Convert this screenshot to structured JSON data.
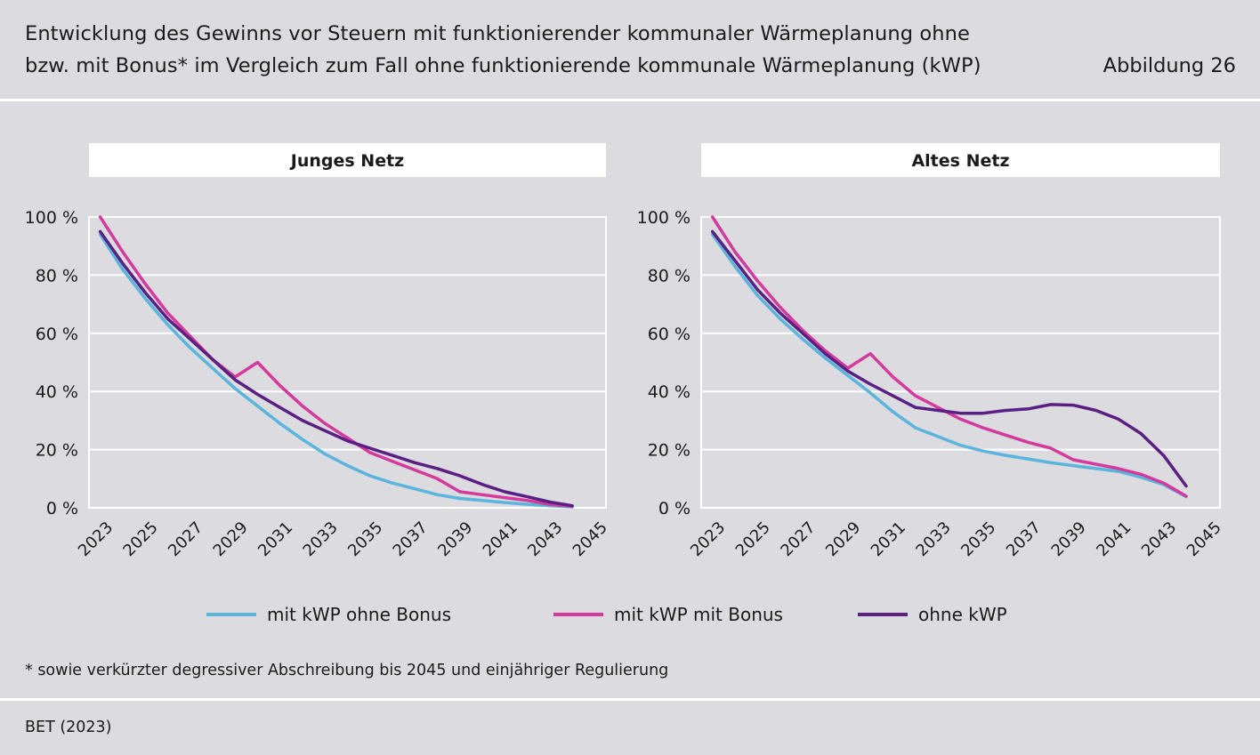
{
  "header": {
    "title_line1": "Entwicklung des Gewinns vor Steuern mit funktionierender kommunaler Wärmeplanung ohne",
    "title_line2": "bzw. mit Bonus* im Vergleich zum Fall ohne funktionierende kommunale Wärmeplanung (kWP)",
    "figure_label": "Abbildung 26"
  },
  "footnote": "* sowie verkürzter degressiver Abschreibung bis 2045 und einjähriger Regulierung",
  "source": "BET (2023)",
  "legend": [
    {
      "label": "mit kWP ohne Bonus",
      "color": "#5ab4dc"
    },
    {
      "label": "mit kWP mit Bonus",
      "color": "#d43a9c"
    },
    {
      "label": "ohne kWP",
      "color": "#5a1f82"
    }
  ],
  "colors": {
    "ohne_bonus": "#5ab4dc",
    "mit_bonus": "#d43a9c",
    "ohne_kwp": "#5a1f82",
    "plot_bg": "#dcdbe0",
    "grid": "#ffffff"
  },
  "chart_data": [
    {
      "type": "line",
      "title": "Junges Netz",
      "x_tick_labels": [
        "2023",
        "2025",
        "2027",
        "2029",
        "2031",
        "2033",
        "2035",
        "2037",
        "2039",
        "2041",
        "2043",
        "2045"
      ],
      "y_tick_labels": [
        "0 %",
        "20 %",
        "40 %",
        "60 %",
        "80 %",
        "100 %"
      ],
      "ylim": [
        0,
        100
      ],
      "xlim": [
        2022.5,
        2045.5
      ],
      "x": [
        2023,
        2024,
        2025,
        2026,
        2027,
        2028,
        2029,
        2030,
        2031,
        2032,
        2033,
        2034,
        2035,
        2036,
        2037,
        2038,
        2039,
        2040,
        2041,
        2042,
        2043,
        2044
      ],
      "series": [
        {
          "name": "mit kWP ohne Bonus",
          "values": [
            94,
            82,
            72,
            63,
            55,
            48,
            41,
            35,
            29,
            23.5,
            18.5,
            14.5,
            11,
            8.5,
            6.5,
            4.5,
            3.2,
            2.5,
            1.8,
            1.2,
            0.7,
            0.3
          ]
        },
        {
          "name": "mit kWP mit Bonus",
          "values": [
            100,
            88,
            77,
            67,
            59,
            51,
            45,
            50,
            42,
            35,
            29,
            24,
            19,
            16,
            13,
            10,
            5.5,
            4.5,
            3.5,
            2.5,
            1.2,
            0.5
          ]
        },
        {
          "name": "ohne kWP",
          "values": [
            95,
            84,
            74,
            65,
            58,
            51,
            44,
            39,
            34.5,
            30,
            26.5,
            23,
            20.5,
            18,
            15.5,
            13.5,
            11,
            8,
            5.5,
            3.8,
            2,
            0.7
          ]
        }
      ]
    },
    {
      "type": "line",
      "title": "Altes Netz",
      "x_tick_labels": [
        "2023",
        "2025",
        "2027",
        "2029",
        "2031",
        "2033",
        "2035",
        "2037",
        "2039",
        "2041",
        "2043",
        "2045"
      ],
      "y_tick_labels": [
        "0 %",
        "20 %",
        "40 %",
        "60 %",
        "80 %",
        "100 %"
      ],
      "ylim": [
        0,
        100
      ],
      "xlim": [
        2022.5,
        2045.5
      ],
      "x": [
        2023,
        2024,
        2025,
        2026,
        2027,
        2028,
        2029,
        2030,
        2031,
        2032,
        2033,
        2034,
        2035,
        2036,
        2037,
        2038,
        2039,
        2040,
        2041,
        2042,
        2043,
        2044
      ],
      "series": [
        {
          "name": "mit kWP ohne Bonus",
          "values": [
            94,
            83,
            73,
            65,
            58,
            51.5,
            45.5,
            39.5,
            33,
            27.5,
            24.5,
            21.5,
            19.5,
            18,
            16.8,
            15.5,
            14.5,
            13.5,
            12.5,
            10.5,
            8,
            3.8
          ]
        },
        {
          "name": "mit kWP mit Bonus",
          "values": [
            100,
            88,
            78,
            69,
            61,
            54,
            48,
            53,
            45,
            38.5,
            34.5,
            30.5,
            27.5,
            25,
            22.5,
            20.5,
            16.5,
            15,
            13.5,
            11.5,
            8.5,
            4
          ]
        },
        {
          "name": "ohne kWP",
          "values": [
            95,
            85,
            75,
            67,
            60,
            53,
            47,
            42.5,
            38.5,
            34.5,
            33.5,
            32.5,
            32.5,
            33.5,
            34,
            35.5,
            35.3,
            33.5,
            30.5,
            25.5,
            18,
            7.5
          ]
        }
      ]
    }
  ]
}
